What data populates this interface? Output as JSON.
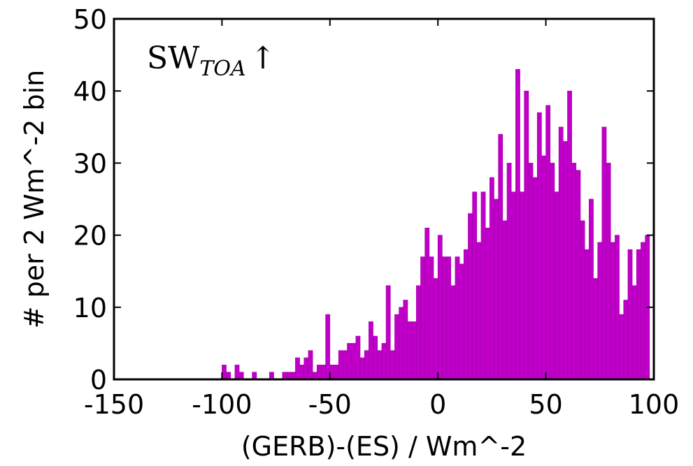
{
  "chart_data": {
    "type": "bar",
    "subtype": "histogram",
    "bin_width": 2,
    "annotation": {
      "main": "SW",
      "subscript": "TOA",
      "arrow": "↑"
    },
    "xlabel": "(GERB)-(ES) / Wm^-2",
    "ylabel": "# per 2 Wm^-2 bin",
    "xlim": [
      -150,
      100
    ],
    "ylim": [
      0,
      50
    ],
    "xticks": [
      "-150",
      "-100",
      "-50",
      "0",
      "50",
      "100"
    ],
    "yticks": [
      "0",
      "10",
      "20",
      "30",
      "40",
      "50"
    ],
    "grid": false,
    "bar_color": "#c000c8",
    "bins": [
      {
        "x": -100,
        "y": 2
      },
      {
        "x": -98,
        "y": 1
      },
      {
        "x": -94,
        "y": 2
      },
      {
        "x": -92,
        "y": 1
      },
      {
        "x": -86,
        "y": 1
      },
      {
        "x": -78,
        "y": 1
      },
      {
        "x": -72,
        "y": 1
      },
      {
        "x": -70,
        "y": 1
      },
      {
        "x": -68,
        "y": 1
      },
      {
        "x": -66,
        "y": 3
      },
      {
        "x": -64,
        "y": 2
      },
      {
        "x": -62,
        "y": 3
      },
      {
        "x": -60,
        "y": 4
      },
      {
        "x": -58,
        "y": 1
      },
      {
        "x": -56,
        "y": 2
      },
      {
        "x": -54,
        "y": 2
      },
      {
        "x": -52,
        "y": 9
      },
      {
        "x": -50,
        "y": 2
      },
      {
        "x": -48,
        "y": 2
      },
      {
        "x": -46,
        "y": 4
      },
      {
        "x": -44,
        "y": 4
      },
      {
        "x": -42,
        "y": 5
      },
      {
        "x": -40,
        "y": 5
      },
      {
        "x": -38,
        "y": 6
      },
      {
        "x": -36,
        "y": 3
      },
      {
        "x": -34,
        "y": 4
      },
      {
        "x": -32,
        "y": 8
      },
      {
        "x": -30,
        "y": 6
      },
      {
        "x": -28,
        "y": 4
      },
      {
        "x": -26,
        "y": 5
      },
      {
        "x": -24,
        "y": 13
      },
      {
        "x": -22,
        "y": 4
      },
      {
        "x": -20,
        "y": 9
      },
      {
        "x": -18,
        "y": 10
      },
      {
        "x": -16,
        "y": 11
      },
      {
        "x": -14,
        "y": 8
      },
      {
        "x": -12,
        "y": 8
      },
      {
        "x": -10,
        "y": 13
      },
      {
        "x": -8,
        "y": 17
      },
      {
        "x": -6,
        "y": 21
      },
      {
        "x": -4,
        "y": 17
      },
      {
        "x": -2,
        "y": 14
      },
      {
        "x": 0,
        "y": 20
      },
      {
        "x": 2,
        "y": 17
      },
      {
        "x": 4,
        "y": 17
      },
      {
        "x": 6,
        "y": 13
      },
      {
        "x": 8,
        "y": 17
      },
      {
        "x": 10,
        "y": 16
      },
      {
        "x": 12,
        "y": 18
      },
      {
        "x": 14,
        "y": 23
      },
      {
        "x": 16,
        "y": 26
      },
      {
        "x": 18,
        "y": 19
      },
      {
        "x": 20,
        "y": 26
      },
      {
        "x": 22,
        "y": 21
      },
      {
        "x": 24,
        "y": 28
      },
      {
        "x": 26,
        "y": 25
      },
      {
        "x": 28,
        "y": 34
      },
      {
        "x": 30,
        "y": 22
      },
      {
        "x": 32,
        "y": 30
      },
      {
        "x": 34,
        "y": 26
      },
      {
        "x": 36,
        "y": 43
      },
      {
        "x": 38,
        "y": 26
      },
      {
        "x": 40,
        "y": 40
      },
      {
        "x": 42,
        "y": 30
      },
      {
        "x": 44,
        "y": 28
      },
      {
        "x": 46,
        "y": 37
      },
      {
        "x": 48,
        "y": 31
      },
      {
        "x": 50,
        "y": 38
      },
      {
        "x": 52,
        "y": 30
      },
      {
        "x": 54,
        "y": 26
      },
      {
        "x": 56,
        "y": 35
      },
      {
        "x": 58,
        "y": 33
      },
      {
        "x": 60,
        "y": 40
      },
      {
        "x": 62,
        "y": 30
      },
      {
        "x": 64,
        "y": 29
      },
      {
        "x": 66,
        "y": 22
      },
      {
        "x": 68,
        "y": 18
      },
      {
        "x": 70,
        "y": 25
      },
      {
        "x": 72,
        "y": 14
      },
      {
        "x": 74,
        "y": 19
      },
      {
        "x": 76,
        "y": 35
      },
      {
        "x": 78,
        "y": 30
      },
      {
        "x": 80,
        "y": 19
      },
      {
        "x": 82,
        "y": 20
      },
      {
        "x": 84,
        "y": 9
      },
      {
        "x": 86,
        "y": 11
      },
      {
        "x": 88,
        "y": 18
      },
      {
        "x": 90,
        "y": 13
      },
      {
        "x": 92,
        "y": 18
      },
      {
        "x": 94,
        "y": 19
      },
      {
        "x": 96,
        "y": 20
      }
    ],
    "bins_note": ""
  }
}
